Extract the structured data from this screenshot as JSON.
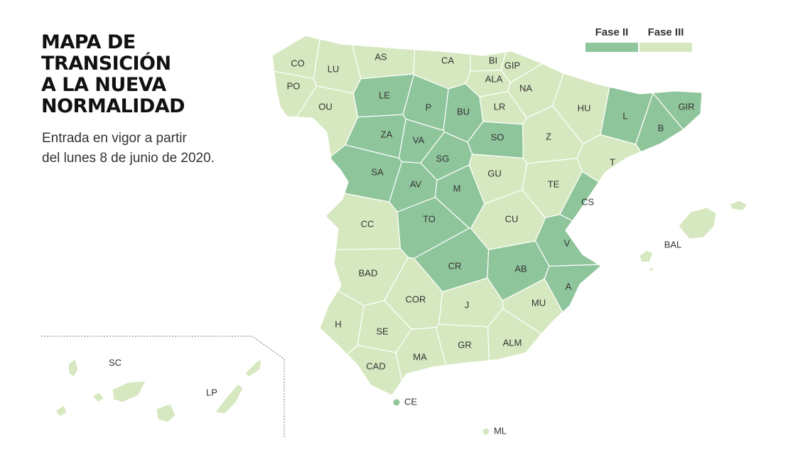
{
  "title": [
    "MAPA DE",
    "TRANSICIÓN",
    "A LA NUEVA",
    "NORMALIDAD"
  ],
  "subtitle": [
    "Entrada en vigor a partir",
    "del lunes 8 de junio de 2020."
  ],
  "legend": [
    {
      "label": "Fase II",
      "color": "#8fc59b"
    },
    {
      "label": "Fase III",
      "color": "#d6e8bf"
    }
  ],
  "regions": [
    {
      "label": "CO",
      "color": "#d6e8bf"
    },
    {
      "label": "LU",
      "color": "#d6e8bf"
    },
    {
      "label": "AS",
      "color": "#d6e8bf"
    },
    {
      "label": "CA",
      "color": "#d6e8bf"
    },
    {
      "label": "BI",
      "color": "#d6e8bf"
    },
    {
      "label": "GIP",
      "color": "#d6e8bf"
    },
    {
      "label": "ALA",
      "color": "#d6e8bf"
    },
    {
      "label": "NA",
      "color": "#d6e8bf"
    },
    {
      "label": "PO",
      "color": "#d6e8bf"
    },
    {
      "label": "OU",
      "color": "#d6e8bf"
    },
    {
      "label": "LE",
      "color": "#8fc59b"
    },
    {
      "label": "P",
      "color": "#8fc59b"
    },
    {
      "label": "BU",
      "color": "#8fc59b"
    },
    {
      "label": "LR",
      "color": "#d6e8bf"
    },
    {
      "label": "HU",
      "color": "#d6e8bf"
    },
    {
      "label": "L",
      "color": "#8fc59b"
    },
    {
      "label": "GIR",
      "color": "#8fc59b"
    },
    {
      "label": "B",
      "color": "#8fc59b"
    },
    {
      "label": "ZA",
      "color": "#8fc59b"
    },
    {
      "label": "VA",
      "color": "#8fc59b"
    },
    {
      "label": "SO",
      "color": "#8fc59b"
    },
    {
      "label": "Z",
      "color": "#d6e8bf"
    },
    {
      "label": "SG",
      "color": "#8fc59b"
    },
    {
      "label": "GU",
      "color": "#d6e8bf"
    },
    {
      "label": "T",
      "color": "#d6e8bf"
    },
    {
      "label": "SA",
      "color": "#8fc59b"
    },
    {
      "label": "AV",
      "color": "#8fc59b"
    },
    {
      "label": "M",
      "color": "#8fc59b"
    },
    {
      "label": "TE",
      "color": "#d6e8bf"
    },
    {
      "label": "CS",
      "color": "#8fc59b"
    },
    {
      "label": "CC",
      "color": "#d6e8bf"
    },
    {
      "label": "TO",
      "color": "#8fc59b"
    },
    {
      "label": "CU",
      "color": "#d6e8bf"
    },
    {
      "label": "V",
      "color": "#8fc59b"
    },
    {
      "label": "CR",
      "color": "#8fc59b"
    },
    {
      "label": "AB",
      "color": "#8fc59b"
    },
    {
      "label": "BAD",
      "color": "#d6e8bf"
    },
    {
      "label": "A",
      "color": "#8fc59b"
    },
    {
      "label": "COR",
      "color": "#d6e8bf"
    },
    {
      "label": "J",
      "color": "#d6e8bf"
    },
    {
      "label": "MU",
      "color": "#d6e8bf"
    },
    {
      "label": "H",
      "color": "#d6e8bf"
    },
    {
      "label": "SE",
      "color": "#d6e8bf"
    },
    {
      "label": "GR",
      "color": "#d6e8bf"
    },
    {
      "label": "ALM",
      "color": "#d6e8bf"
    },
    {
      "label": "CAD",
      "color": "#d6e8bf"
    },
    {
      "label": "MA",
      "color": "#d6e8bf"
    },
    {
      "label": "CE",
      "color": "#8fc59b"
    },
    {
      "label": "ML",
      "color": "#d6e8bf"
    },
    {
      "label": "BAL",
      "color": "#d6e8bf"
    },
    {
      "label": "SC",
      "color": "#d6e8bf"
    },
    {
      "label": "LP",
      "color": "#d6e8bf"
    }
  ]
}
